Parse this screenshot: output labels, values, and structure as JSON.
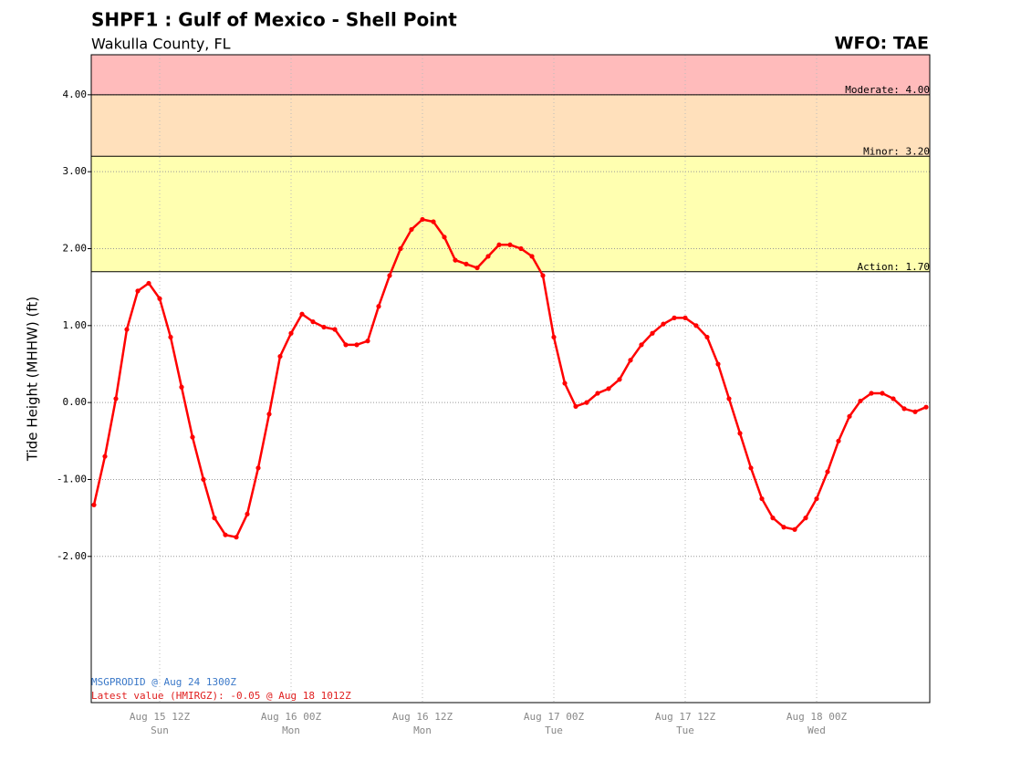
{
  "chart_data": {
    "type": "line",
    "title": "SHPF1 : Gulf of Mexico - Shell Point",
    "subtitle": "Wakulla County, FL",
    "office": "WFO: TAE",
    "y_label": "Tide Height (MHHW) (ft)",
    "footer_product": "MSGPRODID @ Aug 24 1300Z",
    "footer_latest": "Latest value (HMIRGZ): -0.05 @ Aug 18 1012Z",
    "xlim": [
      "Aug 15 0545Z",
      "Aug 18 1020Z"
    ],
    "xticks": [
      "Aug 15 12Z",
      "Aug 16 00Z",
      "Aug 16 12Z",
      "Aug 17 00Z",
      "Aug 17 12Z",
      "Aug 18 00Z"
    ],
    "xtick_days": [
      "Sun",
      "Mon",
      "Mon",
      "Tue",
      "Tue",
      "Wed"
    ],
    "ylim": [
      -3.9,
      4.52
    ],
    "yticks": [
      {
        "value": -2,
        "label": "-2.00"
      },
      {
        "value": -1,
        "label": "-1.00"
      },
      {
        "value": 0,
        "label": "0.00"
      },
      {
        "value": 1,
        "label": "1.00"
      },
      {
        "value": 2,
        "label": "2.00"
      },
      {
        "value": 3,
        "label": "3.00"
      },
      {
        "value": 4,
        "label": "4.00"
      }
    ],
    "grid": true,
    "thresholds": [
      {
        "value": 4.0,
        "label": "Moderate: 4.00",
        "color": "#ffbbbb"
      },
      {
        "value": 3.2,
        "label": "Minor: 3.20",
        "color": "#ffe0bb"
      },
      {
        "value": 1.7,
        "label": "Action: 1.70",
        "color": "#ffffb0"
      }
    ],
    "x": [
      "Aug 15 0600Z",
      "Aug 15 0700Z",
      "Aug 15 0800Z",
      "Aug 15 0900Z",
      "Aug 15 1000Z",
      "Aug 15 1100Z",
      "Aug 15 1200Z",
      "Aug 15 1300Z",
      "Aug 15 1400Z",
      "Aug 15 1500Z",
      "Aug 15 1600Z",
      "Aug 15 1700Z",
      "Aug 15 1800Z",
      "Aug 15 1900Z",
      "Aug 15 2000Z",
      "Aug 15 2100Z",
      "Aug 15 2200Z",
      "Aug 15 2300Z",
      "Aug 16 0000Z",
      "Aug 16 0100Z",
      "Aug 16 0200Z",
      "Aug 16 0300Z",
      "Aug 16 0400Z",
      "Aug 16 0500Z",
      "Aug 16 0600Z",
      "Aug 16 0700Z",
      "Aug 16 0800Z",
      "Aug 16 0900Z",
      "Aug 16 1000Z",
      "Aug 16 1100Z",
      "Aug 16 1200Z",
      "Aug 16 1300Z",
      "Aug 16 1400Z",
      "Aug 16 1500Z",
      "Aug 16 1600Z",
      "Aug 16 1700Z",
      "Aug 16 1800Z",
      "Aug 16 1900Z",
      "Aug 16 2000Z",
      "Aug 16 2100Z",
      "Aug 16 2200Z",
      "Aug 16 2300Z",
      "Aug 17 0000Z",
      "Aug 17 0100Z",
      "Aug 17 0200Z",
      "Aug 17 0300Z",
      "Aug 17 0400Z",
      "Aug 17 0500Z",
      "Aug 17 0600Z",
      "Aug 17 0700Z",
      "Aug 17 0800Z",
      "Aug 17 0900Z",
      "Aug 17 1000Z",
      "Aug 17 1100Z",
      "Aug 17 1200Z",
      "Aug 17 1300Z",
      "Aug 17 1400Z",
      "Aug 17 1500Z",
      "Aug 17 1600Z",
      "Aug 17 1700Z",
      "Aug 17 1800Z",
      "Aug 17 1900Z",
      "Aug 17 2000Z",
      "Aug 17 2100Z",
      "Aug 17 2200Z",
      "Aug 17 2300Z",
      "Aug 18 0000Z",
      "Aug 18 0100Z",
      "Aug 18 0200Z",
      "Aug 18 0300Z",
      "Aug 18 0400Z",
      "Aug 18 0500Z",
      "Aug 18 0600Z",
      "Aug 18 0700Z",
      "Aug 18 0800Z",
      "Aug 18 0900Z",
      "Aug 18 1000Z"
    ],
    "series": [
      {
        "name": "Tide Height",
        "color": "#ff0000",
        "values": [
          -1.33,
          -0.7,
          0.05,
          0.95,
          1.45,
          1.55,
          1.35,
          0.85,
          0.2,
          -0.45,
          -1.0,
          -1.5,
          -1.72,
          -1.75,
          -1.45,
          -0.85,
          -0.15,
          0.6,
          0.9,
          1.15,
          1.05,
          0.98,
          0.95,
          0.75,
          0.75,
          0.8,
          1.25,
          1.65,
          2.0,
          2.25,
          2.38,
          2.35,
          2.15,
          1.85,
          1.8,
          1.75,
          1.9,
          2.05,
          2.05,
          2.0,
          1.9,
          1.65,
          0.85,
          0.25,
          -0.05,
          0.0,
          0.12,
          0.18,
          0.3,
          0.55,
          0.75,
          0.9,
          1.02,
          1.1,
          1.1,
          1.0,
          0.85,
          0.5,
          0.05,
          -0.4,
          -0.85,
          -1.25,
          -1.5,
          -1.62,
          -1.65,
          -1.5,
          -1.25,
          -0.9,
          -0.5,
          -0.18,
          0.02,
          0.12,
          0.12,
          0.05,
          -0.08,
          -0.12,
          -0.06
        ]
      }
    ]
  }
}
